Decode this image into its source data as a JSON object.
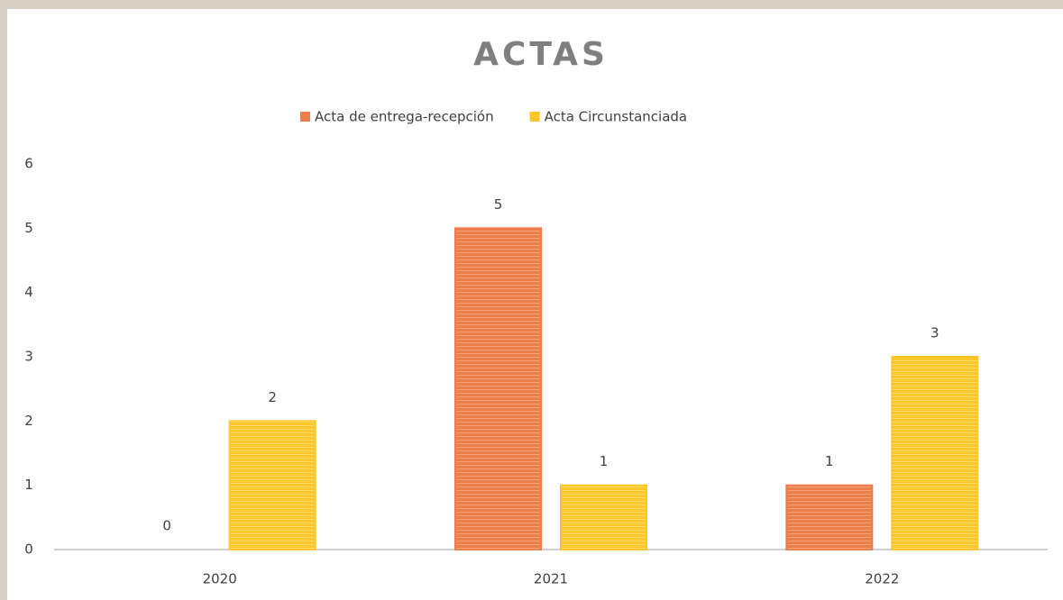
{
  "chart_data": {
    "type": "bar",
    "title": "ACTAS",
    "categories": [
      "2020",
      "2021",
      "2022"
    ],
    "series": [
      {
        "name": "Acta de entrega-recepción",
        "color": "#ed7d4a",
        "values": [
          0,
          5,
          1
        ]
      },
      {
        "name": "Acta Circunstanciada",
        "color": "#ffc629",
        "values": [
          2,
          1,
          3
        ]
      }
    ],
    "ylim": [
      0,
      6
    ],
    "yticks": [
      0,
      1,
      2,
      3,
      4,
      5,
      6
    ],
    "grid": false,
    "legend": "top"
  }
}
